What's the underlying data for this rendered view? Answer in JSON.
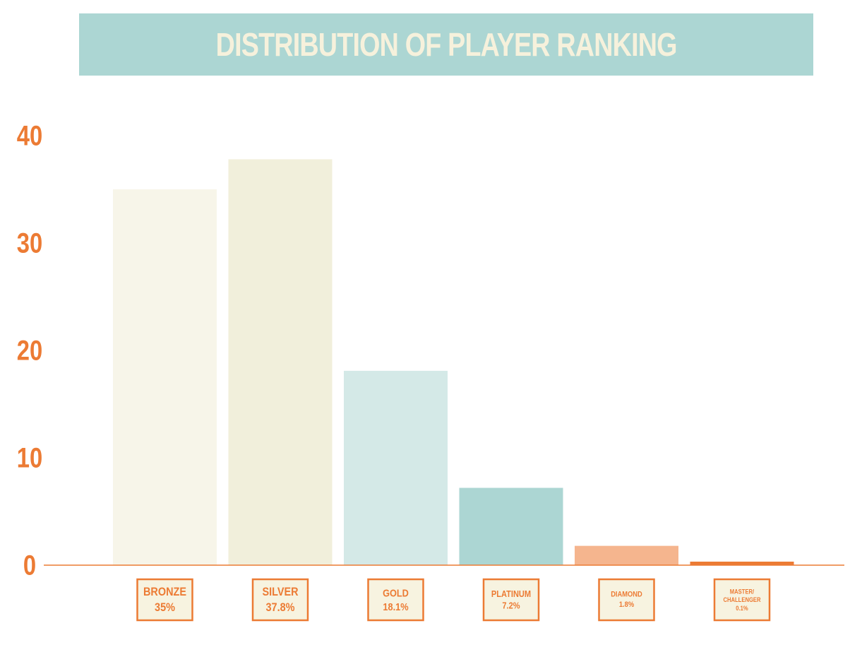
{
  "chart_data": {
    "type": "bar",
    "title": "DISTRIBUTION OF PLAYER RANKING",
    "xlabel": "",
    "ylabel": "",
    "ylim": [
      0,
      40
    ],
    "yticks": [
      "0",
      "10",
      "20",
      "30",
      "40"
    ],
    "grid": false,
    "categories": [
      {
        "name_lines": [
          "BRONZE"
        ],
        "value_label": "35%"
      },
      {
        "name_lines": [
          "SILVER"
        ],
        "value_label": "37.8%"
      },
      {
        "name_lines": [
          "GOLD"
        ],
        "value_label": "18.1%"
      },
      {
        "name_lines": [
          "PLATINUM"
        ],
        "value_label": "7.2%"
      },
      {
        "name_lines": [
          "DIAMOND"
        ],
        "value_label": "1.8%"
      },
      {
        "name_lines": [
          "MASTER/",
          "CHALLENGER"
        ],
        "value_label": "0.1%"
      }
    ],
    "values": [
      35,
      37.8,
      18.1,
      7.2,
      1.8,
      0.1
    ],
    "bar_colors": [
      "#f7f5e9",
      "#f1efdb",
      "#d4e9e7",
      "#acd6d3",
      "#f5b58e",
      "#ec7b34"
    ],
    "accent_color": "#ec7b34",
    "title_bg_color": "#acd6d3",
    "title_text_color": "#f6f1dc"
  }
}
